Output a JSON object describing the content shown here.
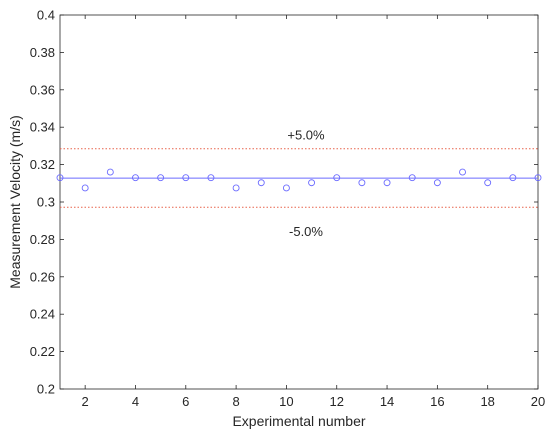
{
  "chart_data": {
    "type": "scatter",
    "title": "",
    "xlabel": "Experimental number",
    "ylabel": "Measurement Velocity (m/s)",
    "xlim": [
      1,
      20
    ],
    "ylim": [
      0.2,
      0.4
    ],
    "xticks": [
      2,
      4,
      6,
      8,
      10,
      12,
      14,
      16,
      18,
      20
    ],
    "xtick_labels": [
      "2",
      "4",
      "6",
      "8",
      "10",
      "12",
      "14",
      "16",
      "18",
      "20"
    ],
    "yticks": [
      0.2,
      0.22,
      0.24,
      0.26,
      0.28,
      0.3,
      0.32,
      0.34,
      0.36,
      0.38,
      0.4
    ],
    "ytick_labels": [
      "0.2",
      "0.22",
      "0.24",
      "0.26",
      "0.28",
      "0.3",
      "0.32",
      "0.34",
      "0.36",
      "0.38",
      "0.4"
    ],
    "grid": false,
    "points": {
      "x": [
        1,
        2,
        3,
        4,
        5,
        6,
        7,
        8,
        9,
        10,
        11,
        12,
        13,
        14,
        15,
        16,
        17,
        18,
        19,
        20
      ],
      "y": [
        0.313,
        0.3075,
        0.316,
        0.313,
        0.313,
        0.313,
        0.313,
        0.3075,
        0.3103,
        0.3075,
        0.3103,
        0.313,
        0.3103,
        0.3103,
        0.313,
        0.3103,
        0.316,
        0.3103,
        0.313,
        0.313
      ],
      "marker": "open-circle",
      "color": "#6b6bff"
    },
    "reference_line": {
      "y": 0.3128,
      "color": "#6b6bff",
      "style": "solid"
    },
    "bounds": [
      {
        "y": 0.3285,
        "label": "+5.0%",
        "color": "#e8624a",
        "style": "dotted"
      },
      {
        "y": 0.2972,
        "label": "-5.0%",
        "color": "#e8624a",
        "style": "dotted"
      }
    ]
  }
}
